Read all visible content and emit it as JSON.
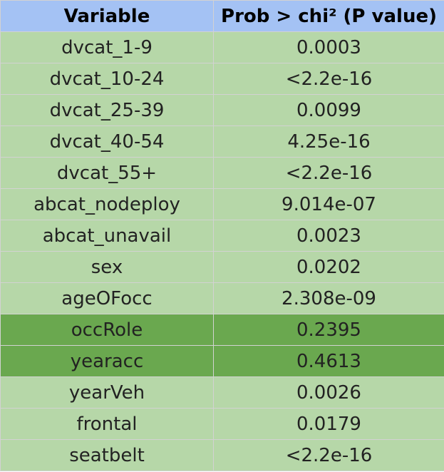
{
  "table": {
    "headers": [
      "Variable",
      "Prob > chi² (P value)"
    ],
    "rows": [
      {
        "variable": "dvcat_1-9",
        "p_value": "0.0003",
        "highlight": false
      },
      {
        "variable": "dvcat_10-24",
        "p_value": "<2.2e-16",
        "highlight": false
      },
      {
        "variable": "dvcat_25-39",
        "p_value": "0.0099",
        "highlight": false
      },
      {
        "variable": "dvcat_40-54",
        "p_value": "4.25e-16",
        "highlight": false
      },
      {
        "variable": "dvcat_55+",
        "p_value": "<2.2e-16",
        "highlight": false
      },
      {
        "variable": "abcat_nodeploy",
        "p_value": "9.014e-07",
        "highlight": false
      },
      {
        "variable": "abcat_unavail",
        "p_value": "0.0023",
        "highlight": false
      },
      {
        "variable": "sex",
        "p_value": "0.0202",
        "highlight": false
      },
      {
        "variable": "ageOFocc",
        "p_value": "2.308e-09",
        "highlight": false
      },
      {
        "variable": "occRole",
        "p_value": "0.2395",
        "highlight": true
      },
      {
        "variable": "yearacc",
        "p_value": "0.4613",
        "highlight": true
      },
      {
        "variable": "yearVeh",
        "p_value": "0.0026",
        "highlight": false
      },
      {
        "variable": "frontal",
        "p_value": "0.0179",
        "highlight": false
      },
      {
        "variable": "seatbelt",
        "p_value": "<2.2e-16",
        "highlight": false
      }
    ],
    "colors": {
      "header_bg": "#a4c2f4",
      "row_bg": "#b6d7a8",
      "highlight_bg": "#6aa84f",
      "border": "#d2d2d2"
    }
  }
}
